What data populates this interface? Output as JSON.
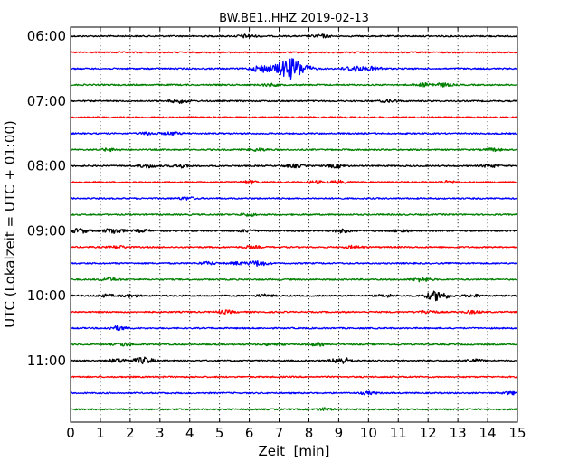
{
  "chart_data": {
    "type": "line",
    "title": "BW.BE1..HHZ 2019-02-13",
    "xlabel": "Zeit  [min]",
    "ylabel": "UTC (Lokalzeit = UTC + 01:00)",
    "xlim": [
      0,
      15
    ],
    "x_ticks": [
      "0",
      "1",
      "2",
      "3",
      "4",
      "5",
      "6",
      "7",
      "8",
      "9",
      "10",
      "11",
      "12",
      "13",
      "14",
      "15"
    ],
    "y_tick_labels": [
      "06:00",
      "07:00",
      "08:00",
      "09:00",
      "10:00",
      "11:00"
    ],
    "grid": "vertical dotted lines at each minute",
    "trace_colors": [
      "#000000",
      "#ff0000",
      "#0000ff",
      "#008000"
    ],
    "trace_interval_minutes": 15,
    "traces": [
      {
        "start": "06:00",
        "color": "#000000",
        "events": [
          {
            "t": 5.9,
            "amp": 0.25
          },
          {
            "t": 8.4,
            "amp": 0.25
          }
        ]
      },
      {
        "start": "06:15",
        "color": "#ff0000",
        "events": []
      },
      {
        "start": "06:30",
        "color": "#0000ff",
        "events": [
          {
            "t": 6.4,
            "amp": 0.55
          },
          {
            "t": 7.4,
            "amp": 1.7
          },
          {
            "t": 9.5,
            "amp": 0.45
          },
          {
            "t": 10.2,
            "amp": 0.3
          }
        ]
      },
      {
        "start": "06:45",
        "color": "#008000",
        "events": [
          {
            "t": 6.7,
            "amp": 0.2
          },
          {
            "t": 11.9,
            "amp": 0.25
          },
          {
            "t": 12.5,
            "amp": 0.25
          }
        ]
      },
      {
        "start": "07:00",
        "color": "#000000",
        "events": [
          {
            "t": 3.65,
            "amp": 0.3
          },
          {
            "t": 10.7,
            "amp": 0.2
          }
        ]
      },
      {
        "start": "07:15",
        "color": "#ff0000",
        "events": []
      },
      {
        "start": "07:30",
        "color": "#0000ff",
        "events": [
          {
            "t": 2.6,
            "amp": 0.2
          },
          {
            "t": 3.4,
            "amp": 0.2
          }
        ]
      },
      {
        "start": "07:45",
        "color": "#008000",
        "events": [
          {
            "t": 1.3,
            "amp": 0.2
          },
          {
            "t": 6.3,
            "amp": 0.2
          },
          {
            "t": 14.2,
            "amp": 0.2
          }
        ]
      },
      {
        "start": "08:00",
        "color": "#000000",
        "events": [
          {
            "t": 2.6,
            "amp": 0.25
          },
          {
            "t": 3.7,
            "amp": 0.25
          },
          {
            "t": 7.5,
            "amp": 0.25
          },
          {
            "t": 8.9,
            "amp": 0.25
          },
          {
            "t": 14.1,
            "amp": 0.2
          }
        ]
      },
      {
        "start": "08:15",
        "color": "#ff0000",
        "events": [
          {
            "t": 6.0,
            "amp": 0.25
          },
          {
            "t": 8.2,
            "amp": 0.2
          },
          {
            "t": 9.0,
            "amp": 0.2
          },
          {
            "t": 12.7,
            "amp": 0.2
          }
        ]
      },
      {
        "start": "08:30",
        "color": "#0000ff",
        "events": [
          {
            "t": 3.9,
            "amp": 0.2
          }
        ]
      },
      {
        "start": "08:45",
        "color": "#008000",
        "events": [
          {
            "t": 6.0,
            "amp": 0.2
          }
        ]
      },
      {
        "start": "09:00",
        "color": "#000000",
        "events": [
          {
            "t": 0.3,
            "amp": 0.35
          },
          {
            "t": 1.45,
            "amp": 0.45
          },
          {
            "t": 2.4,
            "amp": 0.2
          },
          {
            "t": 5.9,
            "amp": 0.2
          },
          {
            "t": 9.1,
            "amp": 0.25
          },
          {
            "t": 11.1,
            "amp": 0.2
          }
        ]
      },
      {
        "start": "09:15",
        "color": "#ff0000",
        "events": [
          {
            "t": 1.6,
            "amp": 0.2
          },
          {
            "t": 6.1,
            "amp": 0.2
          },
          {
            "t": 9.5,
            "amp": 0.2
          }
        ]
      },
      {
        "start": "09:30",
        "color": "#0000ff",
        "events": [
          {
            "t": 4.6,
            "amp": 0.2
          },
          {
            "t": 5.6,
            "amp": 0.2
          },
          {
            "t": 6.3,
            "amp": 0.4
          }
        ]
      },
      {
        "start": "09:45",
        "color": "#008000",
        "events": [
          {
            "t": 1.3,
            "amp": 0.25
          },
          {
            "t": 11.8,
            "amp": 0.3
          }
        ]
      },
      {
        "start": "10:00",
        "color": "#000000",
        "events": [
          {
            "t": 1.2,
            "amp": 0.2
          },
          {
            "t": 2.0,
            "amp": 0.2
          },
          {
            "t": 6.5,
            "amp": 0.2
          },
          {
            "t": 10.6,
            "amp": 0.2
          },
          {
            "t": 12.3,
            "amp": 0.75
          },
          {
            "t": 13.5,
            "amp": 0.2
          }
        ]
      },
      {
        "start": "10:15",
        "color": "#ff0000",
        "events": [
          {
            "t": 5.2,
            "amp": 0.25
          },
          {
            "t": 12.0,
            "amp": 0.25
          },
          {
            "t": 13.5,
            "amp": 0.2
          }
        ]
      },
      {
        "start": "10:30",
        "color": "#0000ff",
        "events": [
          {
            "t": 1.6,
            "amp": 0.3
          }
        ]
      },
      {
        "start": "10:45",
        "color": "#008000",
        "events": [
          {
            "t": 1.8,
            "amp": 0.25
          },
          {
            "t": 6.8,
            "amp": 0.2
          },
          {
            "t": 8.3,
            "amp": 0.2
          }
        ]
      },
      {
        "start": "11:00",
        "color": "#000000",
        "events": [
          {
            "t": 1.6,
            "amp": 0.3
          },
          {
            "t": 2.45,
            "amp": 0.5
          },
          {
            "t": 9.1,
            "amp": 0.5
          },
          {
            "t": 13.5,
            "amp": 0.25
          }
        ]
      },
      {
        "start": "11:15",
        "color": "#ff0000",
        "events": []
      },
      {
        "start": "11:30",
        "color": "#0000ff",
        "events": [
          {
            "t": 10.0,
            "amp": 0.2
          },
          {
            "t": 14.8,
            "amp": 0.2
          }
        ]
      },
      {
        "start": "11:45",
        "color": "#008000",
        "events": [
          {
            "t": 8.5,
            "amp": 0.2
          }
        ]
      }
    ]
  }
}
